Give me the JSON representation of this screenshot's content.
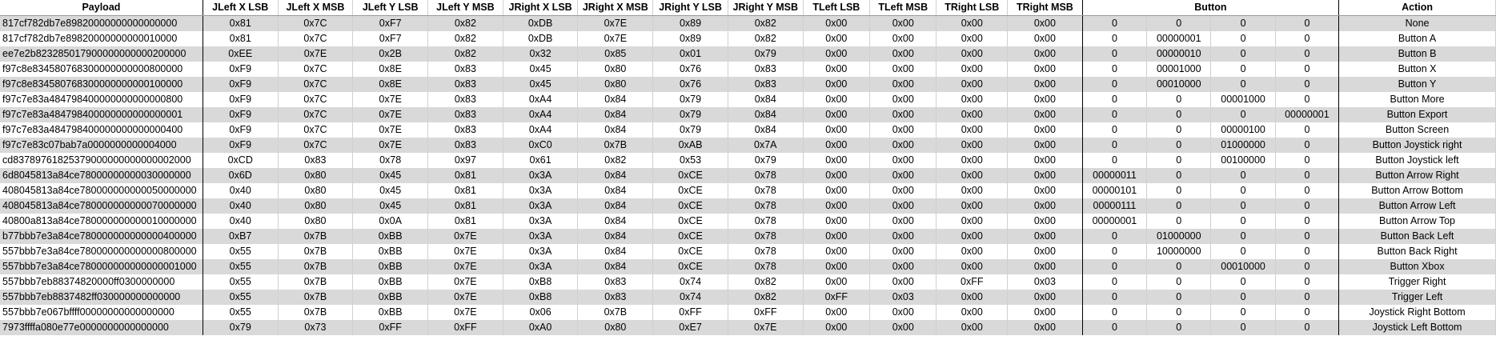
{
  "headers": {
    "payload": "Payload",
    "jleft_x_lsb": "JLeft X LSB",
    "jleft_x_msb": "JLeft X MSB",
    "jleft_y_lsb": "JLeft Y LSB",
    "jleft_y_msb": "JLeft Y MSB",
    "jright_x_lsb": "JRight X LSB",
    "jright_x_msb": "JRight X MSB",
    "jright_y_lsb": "JRight Y LSB",
    "jright_y_msb": "JRight Y MSB",
    "tleft_lsb": "TLeft LSB",
    "tleft_msb": "TLeft MSB",
    "tright_lsb": "TRight LSB",
    "tright_msb": "TRight MSB",
    "button": "Button",
    "action": "Action"
  },
  "rows": [
    [
      "817cf782db7e89820000000000000000",
      "0x81",
      "0x7C",
      "0xF7",
      "0x82",
      "0xDB",
      "0x7E",
      "0x89",
      "0x82",
      "0x00",
      "0x00",
      "0x00",
      "0x00",
      "0",
      "0",
      "0",
      "0",
      "None"
    ],
    [
      "817cf782db7e89820000000000010000",
      "0x81",
      "0x7C",
      "0xF7",
      "0x82",
      "0xDB",
      "0x7E",
      "0x89",
      "0x82",
      "0x00",
      "0x00",
      "0x00",
      "0x00",
      "0",
      "00000001",
      "0",
      "0",
      "Button A"
    ],
    [
      "ee7e2b823285017900000000000200000",
      "0xEE",
      "0x7E",
      "0x2B",
      "0x82",
      "0x32",
      "0x85",
      "0x01",
      "0x79",
      "0x00",
      "0x00",
      "0x00",
      "0x00",
      "0",
      "00000010",
      "0",
      "0",
      "Button B"
    ],
    [
      "f97c8e834580768300000000000800000",
      "0xF9",
      "0x7C",
      "0x8E",
      "0x83",
      "0x45",
      "0x80",
      "0x76",
      "0x83",
      "0x00",
      "0x00",
      "0x00",
      "0x00",
      "0",
      "00001000",
      "0",
      "0",
      "Button X"
    ],
    [
      "f97c8e834580768300000000000100000",
      "0xF9",
      "0x7C",
      "0x8E",
      "0x83",
      "0x45",
      "0x80",
      "0x76",
      "0x83",
      "0x00",
      "0x00",
      "0x00",
      "0x00",
      "0",
      "00010000",
      "0",
      "0",
      "Button Y"
    ],
    [
      "f97c7e83a484798400000000000000800",
      "0xF9",
      "0x7C",
      "0x7E",
      "0x83",
      "0xA4",
      "0x84",
      "0x79",
      "0x84",
      "0x00",
      "0x00",
      "0x00",
      "0x00",
      "0",
      "0",
      "00001000",
      "0",
      "Button More"
    ],
    [
      "f97c7e83a484798400000000000000001",
      "0xF9",
      "0x7C",
      "0x7E",
      "0x83",
      "0xA4",
      "0x84",
      "0x79",
      "0x84",
      "0x00",
      "0x00",
      "0x00",
      "0x00",
      "0",
      "0",
      "0",
      "00000001",
      "Button Export"
    ],
    [
      "f97c7e83a484798400000000000000400",
      "0xF9",
      "0x7C",
      "0x7E",
      "0x83",
      "0xA4",
      "0x84",
      "0x79",
      "0x84",
      "0x00",
      "0x00",
      "0x00",
      "0x00",
      "0",
      "0",
      "00000100",
      "0",
      "Button Screen"
    ],
    [
      "f97c7e83c07bab7a0000000000004000",
      "0xF9",
      "0x7C",
      "0x7E",
      "0x83",
      "0xC0",
      "0x7B",
      "0xAB",
      "0x7A",
      "0x00",
      "0x00",
      "0x00",
      "0x00",
      "0",
      "0",
      "01000000",
      "0",
      "Button Joystick right"
    ],
    [
      "cd83789761825379000000000000002000",
      "0xCD",
      "0x83",
      "0x78",
      "0x97",
      "0x61",
      "0x82",
      "0x53",
      "0x79",
      "0x00",
      "0x00",
      "0x00",
      "0x00",
      "0",
      "0",
      "00100000",
      "0",
      "Button Joystick left"
    ],
    [
      "6d8045813a84ce78000000000030000000",
      "0x6D",
      "0x80",
      "0x45",
      "0x81",
      "0x3A",
      "0x84",
      "0xCE",
      "0x78",
      "0x00",
      "0x00",
      "0x00",
      "0x00",
      "00000011",
      "0",
      "0",
      "0",
      "Button Arrow Right"
    ],
    [
      "408045813a84ce780000000000050000000",
      "0x40",
      "0x80",
      "0x45",
      "0x81",
      "0x3A",
      "0x84",
      "0xCE",
      "0x78",
      "0x00",
      "0x00",
      "0x00",
      "0x00",
      "00000101",
      "0",
      "0",
      "0",
      "Button Arrow Bottom"
    ],
    [
      "408045813a84ce780000000000070000000",
      "0x40",
      "0x80",
      "0x45",
      "0x81",
      "0x3A",
      "0x84",
      "0xCE",
      "0x78",
      "0x00",
      "0x00",
      "0x00",
      "0x00",
      "00000111",
      "0",
      "0",
      "0",
      "Button Arrow Left"
    ],
    [
      "40800a813a84ce780000000000010000000",
      "0x40",
      "0x80",
      "0x0A",
      "0x81",
      "0x3A",
      "0x84",
      "0xCE",
      "0x78",
      "0x00",
      "0x00",
      "0x00",
      "0x00",
      "00000001",
      "0",
      "0",
      "0",
      "Button Arrow Top"
    ],
    [
      "b77bbb7e3a84ce780000000000000400000",
      "0xB7",
      "0x7B",
      "0xBB",
      "0x7E",
      "0x3A",
      "0x84",
      "0xCE",
      "0x78",
      "0x00",
      "0x00",
      "0x00",
      "0x00",
      "0",
      "01000000",
      "0",
      "0",
      "Button Back Left"
    ],
    [
      "557bbb7e3a84ce780000000000000800000",
      "0x55",
      "0x7B",
      "0xBB",
      "0x7E",
      "0x3A",
      "0x84",
      "0xCE",
      "0x78",
      "0x00",
      "0x00",
      "0x00",
      "0x00",
      "0",
      "10000000",
      "0",
      "0",
      "Button Back Right"
    ],
    [
      "557bbb7e3a84ce780000000000000001000",
      "0x55",
      "0x7B",
      "0xBB",
      "0x7E",
      "0x3A",
      "0x84",
      "0xCE",
      "0x78",
      "0x00",
      "0x00",
      "0x00",
      "0x00",
      "0",
      "0",
      "00010000",
      "0",
      "Button Xbox"
    ],
    [
      "557bbb7eb88374820000ff0300000000",
      "0x55",
      "0x7B",
      "0xBB",
      "0x7E",
      "0xB8",
      "0x83",
      "0x74",
      "0x82",
      "0x00",
      "0x00",
      "0xFF",
      "0x03",
      "0",
      "0",
      "0",
      "0",
      "Trigger Right"
    ],
    [
      "557bbb7eb8837482ff030000000000000",
      "0x55",
      "0x7B",
      "0xBB",
      "0x7E",
      "0xB8",
      "0x83",
      "0x74",
      "0x82",
      "0xFF",
      "0x03",
      "0x00",
      "0x00",
      "0",
      "0",
      "0",
      "0",
      "Trigger Left"
    ],
    [
      "557bbb7e067bffff00000000000000000",
      "0x55",
      "0x7B",
      "0xBB",
      "0x7E",
      "0x06",
      "0x7B",
      "0xFF",
      "0xFF",
      "0x00",
      "0x00",
      "0x00",
      "0x00",
      "0",
      "0",
      "0",
      "0",
      "Joystick Right Bottom"
    ],
    [
      "7973ffffa080e77e0000000000000000",
      "0x79",
      "0x73",
      "0xFF",
      "0xFF",
      "0xA0",
      "0x80",
      "0xE7",
      "0x7E",
      "0x00",
      "0x00",
      "0x00",
      "0x00",
      "0",
      "0",
      "0",
      "0",
      "Joystick Left Bottom"
    ]
  ]
}
